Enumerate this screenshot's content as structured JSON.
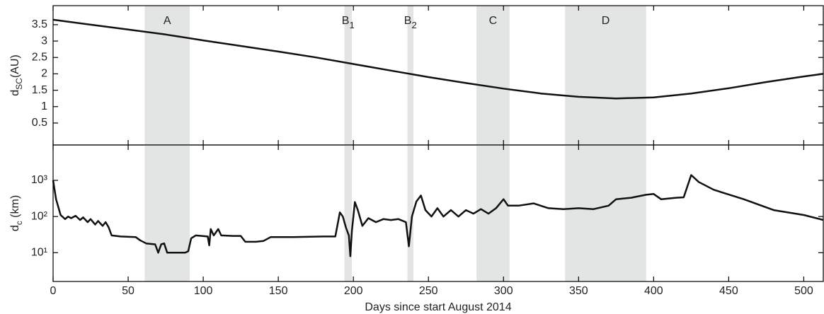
{
  "chart_data": [
    {
      "type": "line",
      "ylabel": "d",
      "ylabel_sub": "SC",
      "ylabel_unit": "(AU)",
      "xlim": [
        0,
        513
      ],
      "ylim": [
        -0.17,
        4.08
      ],
      "yticks": [
        0.5,
        1,
        1.5,
        2,
        2.5,
        3,
        3.5
      ],
      "regions": [
        {
          "label": "A",
          "start": 61,
          "end": 91
        },
        {
          "label": "B",
          "sub": "1",
          "start": 194,
          "end": 199
        },
        {
          "label": "B",
          "sub": "2",
          "start": 236,
          "end": 240
        },
        {
          "label": "C",
          "start": 282,
          "end": 304
        },
        {
          "label": "D",
          "start": 341,
          "end": 395
        }
      ],
      "region_color": "#e3e5e4",
      "x": [
        0,
        25,
        50,
        75,
        100,
        125,
        150,
        175,
        200,
        225,
        250,
        275,
        300,
        325,
        350,
        375,
        400,
        425,
        450,
        475,
        500,
        513
      ],
      "series": [
        {
          "color": "#111111",
          "values": [
            3.65,
            3.5,
            3.35,
            3.2,
            3.02,
            2.85,
            2.68,
            2.5,
            2.3,
            2.1,
            1.9,
            1.72,
            1.55,
            1.4,
            1.3,
            1.25,
            1.28,
            1.4,
            1.56,
            1.75,
            1.92,
            2.0
          ]
        }
      ]
    },
    {
      "type": "line",
      "log_y": true,
      "ylabel": "d",
      "ylabel_sub": "c",
      "ylabel_unit": " (km)",
      "xlabel": "Days since start August 2014",
      "xlim": [
        0,
        513
      ],
      "ylim": [
        1.6,
        9500
      ],
      "xticks": [
        0,
        50,
        100,
        150,
        200,
        250,
        300,
        350,
        400,
        450,
        500
      ],
      "yticks": [
        {
          "value": 10,
          "label": "10¹"
        },
        {
          "value": 100,
          "label": "10²"
        },
        {
          "value": 1000,
          "label": "10³"
        }
      ],
      "x": [
        0,
        2,
        5,
        8,
        10,
        12,
        15,
        18,
        20,
        23,
        25,
        28,
        30,
        33,
        35,
        37,
        39,
        45,
        55,
        58,
        62,
        68,
        70,
        72,
        74,
        76,
        80,
        88,
        90,
        92,
        95,
        103,
        104,
        105,
        107,
        110,
        112,
        120,
        125,
        128,
        135,
        140,
        145,
        160,
        180,
        188,
        191,
        193,
        195,
        197,
        198,
        199,
        201,
        203,
        206,
        210,
        215,
        220,
        225,
        230,
        235,
        237,
        239,
        242,
        245,
        248,
        252,
        256,
        260,
        265,
        270,
        275,
        280,
        285,
        290,
        295,
        300,
        303,
        310,
        320,
        330,
        340,
        350,
        360,
        370,
        375,
        385,
        395,
        400,
        405,
        415,
        420,
        425,
        430,
        440,
        460,
        480,
        500,
        513
      ],
      "series": [
        {
          "color": "#111111",
          "values": [
            1000,
            300,
            110,
            85,
            100,
            90,
            105,
            80,
            95,
            70,
            85,
            60,
            75,
            55,
            70,
            50,
            30,
            28,
            27,
            22,
            18,
            17,
            10,
            17,
            18,
            10,
            10,
            10,
            11,
            25,
            30,
            28,
            16,
            45,
            30,
            45,
            30,
            29,
            29,
            20,
            20,
            21,
            27,
            27,
            28,
            28,
            130,
            100,
            50,
            30,
            8,
            40,
            250,
            150,
            55,
            90,
            70,
            85,
            80,
            85,
            70,
            15,
            100,
            260,
            380,
            150,
            100,
            170,
            100,
            150,
            100,
            150,
            120,
            160,
            120,
            170,
            300,
            200,
            200,
            230,
            170,
            160,
            170,
            160,
            200,
            300,
            330,
            400,
            420,
            300,
            330,
            340,
            1400,
            900,
            550,
            300,
            150,
            110,
            80
          ]
        }
      ]
    }
  ]
}
